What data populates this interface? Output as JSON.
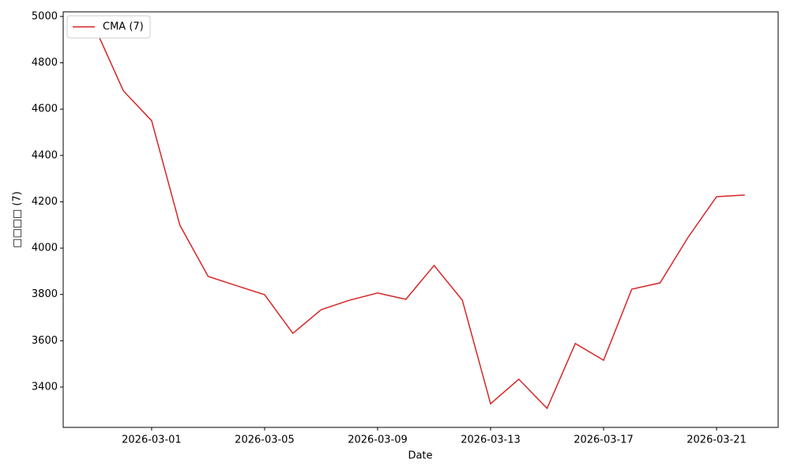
{
  "chart_data": {
    "type": "line",
    "x_label": "Date",
    "y_label": "□□□□ (7)",
    "x": [
      "2026-02-27",
      "2026-02-28",
      "2026-03-01",
      "2026-03-02",
      "2026-03-03",
      "2026-03-04",
      "2026-03-05",
      "2026-03-06",
      "2026-03-07",
      "2026-03-08",
      "2026-03-09",
      "2026-03-10",
      "2026-03-11",
      "2026-03-12",
      "2026-03-13",
      "2026-03-14",
      "2026-03-15",
      "2026-03-16",
      "2026-03-17",
      "2026-03-18",
      "2026-03-19",
      "2026-03-20",
      "2026-03-21",
      "2026-03-22"
    ],
    "series": [
      {
        "name": "CMA (7)",
        "color": "#d62728",
        "values": [
          4950,
          4679,
          4550,
          4099,
          3878,
          3838,
          3799,
          3632,
          3734,
          3775,
          3806,
          3779,
          3925,
          3775,
          3328,
          3434,
          3308,
          3588,
          3516,
          3823,
          3850,
          4048,
          4222,
          4229
        ]
      }
    ],
    "xlim": [
      "2026-02-25T20:52",
      "2026-03-23T04:20"
    ],
    "xticks": [
      "2026-03-01",
      "2026-03-05",
      "2026-03-09",
      "2026-03-13",
      "2026-03-17",
      "2026-03-21"
    ],
    "ylim": [
      3226,
      5020
    ],
    "yticks": [
      3400,
      3600,
      3800,
      4000,
      4200,
      4400,
      4600,
      4800,
      5000
    ],
    "legend": "upper left",
    "grid": false
  }
}
